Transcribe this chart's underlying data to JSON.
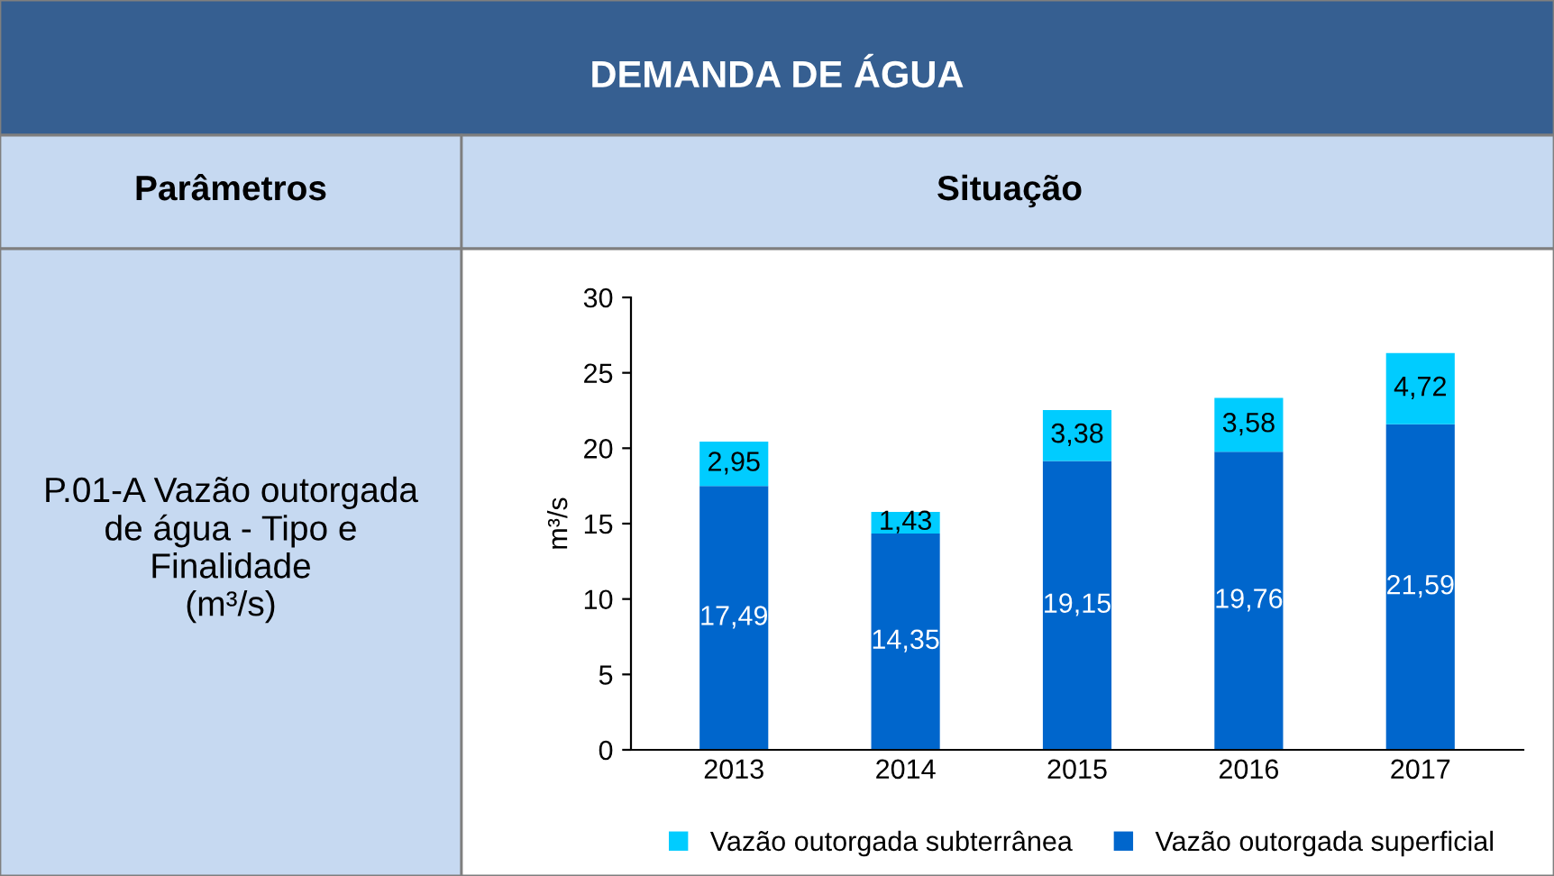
{
  "chart_data": {
    "type": "bar",
    "title": "DEMANDA DE ÁGUA",
    "annotations": [
      "Parâmetros",
      "Situação",
      "P.01-A Vazão outorgada\nde água - Tipo e\nFinalidade\n(m³/s)"
    ],
    "ylabel": "m³/s",
    "categories": [
      "2013",
      "2014",
      "2015",
      "2016",
      "2017"
    ],
    "stacked": true,
    "series": [
      {
        "name": "Vazão outorgada superficial",
        "color": "#0066cc",
        "values": [
          17.49,
          14.35,
          19.15,
          19.76,
          21.59
        ],
        "value_labels": [
          "17,49",
          "14,35",
          "19,15",
          "19,76",
          "21,59"
        ]
      },
      {
        "name": "Vazão outorgada subterrânea",
        "color": "#00ccff",
        "values": [
          2.95,
          1.43,
          3.38,
          3.58,
          4.72
        ],
        "value_labels": [
          "2,95",
          "1,43",
          "3,38",
          "3,58",
          "4,72"
        ]
      }
    ],
    "ylim": [
      0,
      30
    ],
    "yticks": [
      0,
      5,
      10,
      15,
      20,
      25,
      30
    ],
    "grid": false,
    "legend": "bottom"
  }
}
